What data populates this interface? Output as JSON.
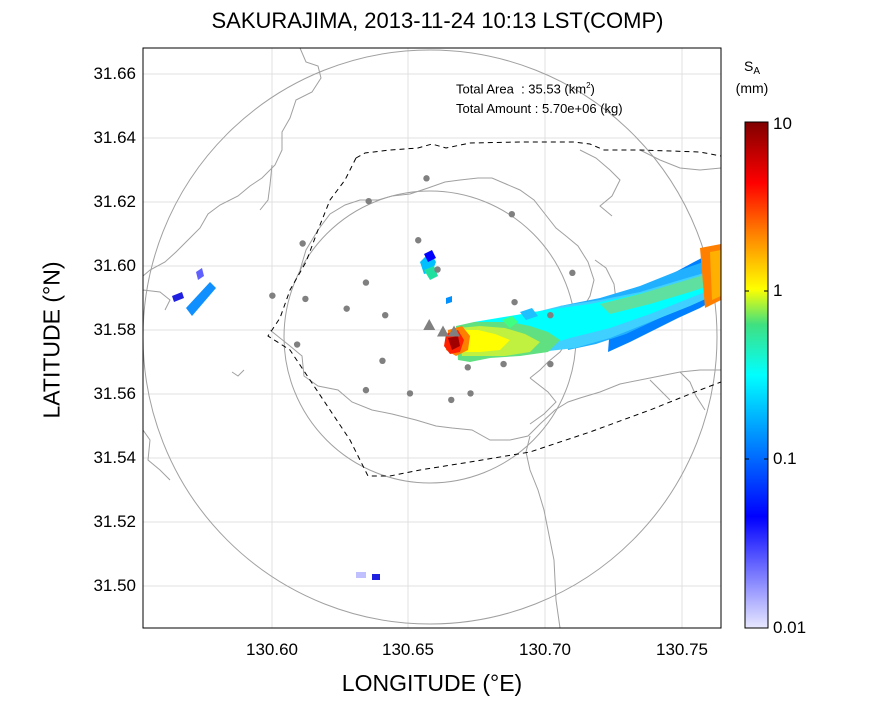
{
  "title": "SAKURAJIMA, 2013-11-24 10:13 LST(COMP)",
  "xlabel": "LONGITUDE (°E)",
  "ylabel": "LATITUDE (°N)",
  "stats": {
    "area_label": "Total Area",
    "area_sep": ": 35.53 (km",
    "area_exp": "2",
    "area_close": ")",
    "amount_label": "Total Amount",
    "amount_value": ": 5.70e+06 (kg)"
  },
  "colorbar": {
    "label_main": "S",
    "label_sub": "A",
    "label_unit": "(mm)",
    "scale": "log",
    "ticks": [
      "10",
      "1",
      "0.1",
      "0.01"
    ],
    "colors": [
      "#800000",
      "#ff0000",
      "#ff8000",
      "#ffff00",
      "#00ffff",
      "#0080ff",
      "#0000ff",
      "#e8e8ff"
    ]
  },
  "map": {
    "xlim": [
      130.553,
      130.763
    ],
    "ylim": [
      31.488,
      31.666
    ],
    "xticks": [
      "130.60",
      "130.65",
      "130.70",
      "130.75"
    ],
    "yticks": [
      "31.66",
      "31.64",
      "31.62",
      "31.60",
      "31.58",
      "31.56",
      "31.54",
      "31.52",
      "31.50"
    ],
    "grid": true,
    "center": [
      130.658,
      31.579
    ],
    "volcano_vents": [
      [
        130.657,
        31.581
      ],
      [
        130.662,
        31.579
      ],
      [
        130.666,
        31.579
      ]
    ],
    "stations": [
      [
        130.656,
        31.626
      ],
      [
        130.687,
        31.615
      ],
      [
        130.635,
        31.619
      ],
      [
        130.611,
        31.606
      ],
      [
        130.6,
        31.59
      ],
      [
        130.612,
        31.589
      ],
      [
        130.627,
        31.586
      ],
      [
        130.634,
        31.594
      ],
      [
        130.641,
        31.584
      ],
      [
        130.653,
        31.607
      ],
      [
        130.66,
        31.598
      ],
      [
        130.688,
        31.588
      ],
      [
        130.701,
        31.584
      ],
      [
        130.709,
        31.597
      ],
      [
        130.609,
        31.575
      ],
      [
        130.64,
        31.57
      ],
      [
        130.634,
        31.561
      ],
      [
        130.65,
        31.56
      ],
      [
        130.665,
        31.558
      ],
      [
        130.672,
        31.56
      ],
      [
        130.671,
        31.568
      ],
      [
        130.684,
        31.569
      ],
      [
        130.701,
        31.569
      ]
    ]
  }
}
